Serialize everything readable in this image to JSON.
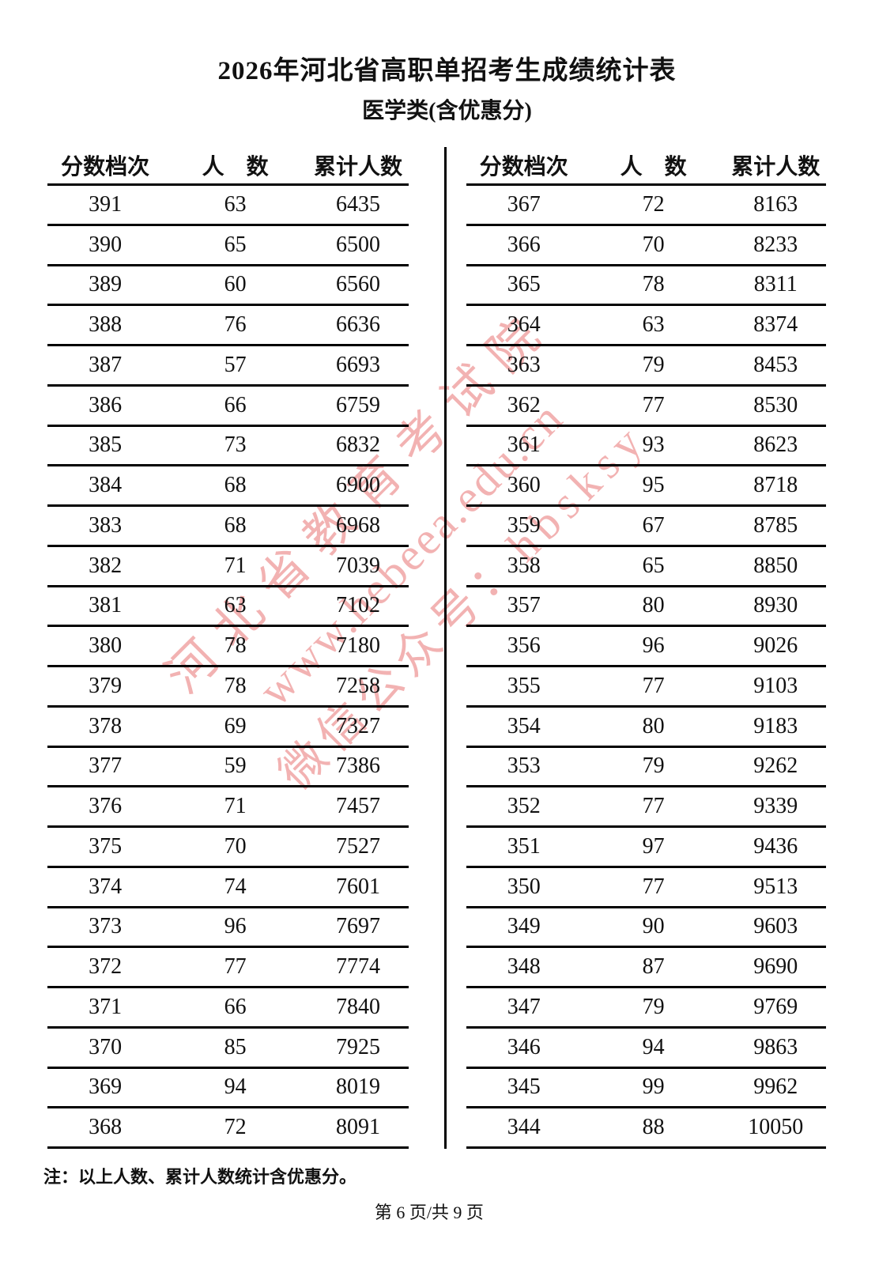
{
  "page": {
    "title": "2026年河北省高职单招考生成绩统计表",
    "subtitle": "医学类(含优惠分)",
    "note": "注：以上人数、累计人数统计含优惠分。",
    "page_info": "第 6 页/共 9 页"
  },
  "watermark": {
    "lines": [
      "河北省教育考试院",
      "www.hebeea.edu.cn",
      "微信公众号：hbsksy"
    ],
    "color": "#e97e7e"
  },
  "tables": [
    {
      "name": "left",
      "headers": [
        "分数档次",
        "人　数",
        "累计人数"
      ],
      "rows": [
        [
          "391",
          "63",
          "6435"
        ],
        [
          "390",
          "65",
          "6500"
        ],
        [
          "389",
          "60",
          "6560"
        ],
        [
          "388",
          "76",
          "6636"
        ],
        [
          "387",
          "57",
          "6693"
        ],
        [
          "386",
          "66",
          "6759"
        ],
        [
          "385",
          "73",
          "6832"
        ],
        [
          "384",
          "68",
          "6900"
        ],
        [
          "383",
          "68",
          "6968"
        ],
        [
          "382",
          "71",
          "7039"
        ],
        [
          "381",
          "63",
          "7102"
        ],
        [
          "380",
          "78",
          "7180"
        ],
        [
          "379",
          "78",
          "7258"
        ],
        [
          "378",
          "69",
          "7327"
        ],
        [
          "377",
          "59",
          "7386"
        ],
        [
          "376",
          "71",
          "7457"
        ],
        [
          "375",
          "70",
          "7527"
        ],
        [
          "374",
          "74",
          "7601"
        ],
        [
          "373",
          "96",
          "7697"
        ],
        [
          "372",
          "77",
          "7774"
        ],
        [
          "371",
          "66",
          "7840"
        ],
        [
          "370",
          "85",
          "7925"
        ],
        [
          "369",
          "94",
          "8019"
        ],
        [
          "368",
          "72",
          "8091"
        ]
      ]
    },
    {
      "name": "right",
      "headers": [
        "分数档次",
        "人　数",
        "累计人数"
      ],
      "rows": [
        [
          "367",
          "72",
          "8163"
        ],
        [
          "366",
          "70",
          "8233"
        ],
        [
          "365",
          "78",
          "8311"
        ],
        [
          "364",
          "63",
          "8374"
        ],
        [
          "363",
          "79",
          "8453"
        ],
        [
          "362",
          "77",
          "8530"
        ],
        [
          "361",
          "93",
          "8623"
        ],
        [
          "360",
          "95",
          "8718"
        ],
        [
          "359",
          "67",
          "8785"
        ],
        [
          "358",
          "65",
          "8850"
        ],
        [
          "357",
          "80",
          "8930"
        ],
        [
          "356",
          "96",
          "9026"
        ],
        [
          "355",
          "77",
          "9103"
        ],
        [
          "354",
          "80",
          "9183"
        ],
        [
          "353",
          "79",
          "9262"
        ],
        [
          "352",
          "77",
          "9339"
        ],
        [
          "351",
          "97",
          "9436"
        ],
        [
          "350",
          "77",
          "9513"
        ],
        [
          "349",
          "90",
          "9603"
        ],
        [
          "348",
          "87",
          "9690"
        ],
        [
          "347",
          "79",
          "9769"
        ],
        [
          "346",
          "94",
          "9863"
        ],
        [
          "345",
          "99",
          "9962"
        ],
        [
          "344",
          "88",
          "10050"
        ]
      ]
    }
  ]
}
